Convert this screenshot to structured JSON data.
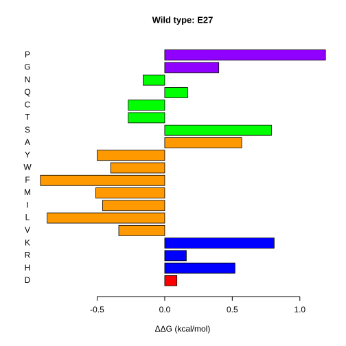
{
  "chart_data": {
    "type": "barh",
    "title": "Wild type: E27",
    "xlabel": "ΔΔG (kcal/mol)",
    "categories": [
      "P",
      "G",
      "N",
      "Q",
      "C",
      "T",
      "S",
      "A",
      "Y",
      "W",
      "F",
      "M",
      "I",
      "L",
      "V",
      "K",
      "R",
      "H",
      "D"
    ],
    "values": [
      1.19,
      0.4,
      -0.16,
      0.17,
      -0.27,
      -0.27,
      0.79,
      0.57,
      -0.5,
      -0.4,
      -0.92,
      -0.51,
      -0.46,
      -0.87,
      -0.34,
      0.81,
      0.16,
      0.52,
      0.09
    ],
    "colors": [
      "#8f00ff",
      "#8f00ff",
      "#00ff00",
      "#00ff00",
      "#00ff00",
      "#00ff00",
      "#00ff00",
      "#ff9900",
      "#ff9900",
      "#ff9900",
      "#ff9900",
      "#ff9900",
      "#ff9900",
      "#ff9900",
      "#ff9900",
      "#0000ff",
      "#0000ff",
      "#0000ff",
      "#ff0000"
    ],
    "xlim": [
      -0.97,
      1.24
    ],
    "xticks": [
      -0.5,
      {
        "value": 0,
        "label": "0.0"
      },
      0.5,
      {
        "value": 1,
        "label": "1.0"
      }
    ]
  }
}
